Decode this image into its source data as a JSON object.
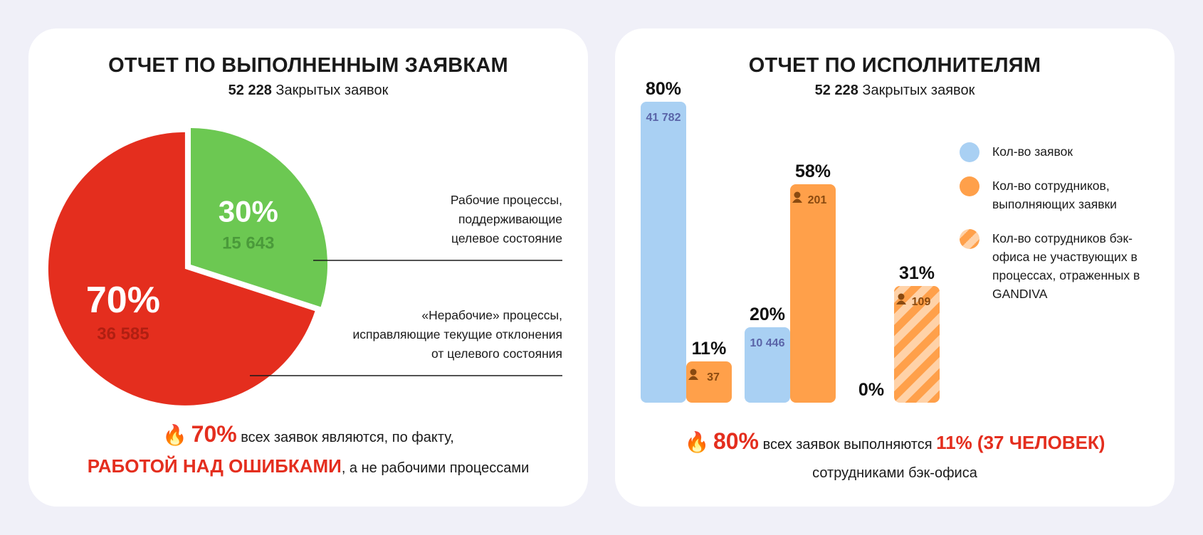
{
  "left": {
    "title": "ОТЧЕТ ПО ВЫПОЛНЕННЫМ ЗАЯВКАМ",
    "subtitle_count": "52 228",
    "subtitle_text": "Закрытых заявок",
    "annotation_working": [
      "Рабочие процессы,",
      "поддерживающие",
      "целевое состояние"
    ],
    "annotation_nonworking": [
      "«Нерабочие» процессы,",
      "исправляющие текущие отклонения",
      "от целевого состояния"
    ],
    "footer": {
      "fire_icon": "🔥",
      "pct": "70%",
      "line1_rest": "всех заявок являются, по факту,",
      "highlight": "РАБОТОЙ НАД ОШИБКАМИ",
      "line2_rest": ", а не рабочими процессами"
    }
  },
  "right": {
    "title": "ОТЧЕТ ПО ИСПОЛНИТЕЛЯМ",
    "subtitle_count": "52 228",
    "subtitle_text": "Закрытых заявок",
    "legend": [
      {
        "label": "Кол-во заявок",
        "color": "#a9d0f3"
      },
      {
        "label": "Кол-во сотрудников, выполняющих заявки",
        "color": "#ffa04a"
      },
      {
        "label": "Кол-во сотрудников бэк-офиса не участвующих в процессах, отраженных в GANDIVA",
        "color": "#ffa04a"
      }
    ],
    "footer": {
      "fire_icon": "🔥",
      "pct": "80%",
      "line1_rest": "всех заявок выполняются",
      "highlight": "11% (37 ЧЕЛОВЕК)",
      "line2": "сотрудниками бэк-офиса"
    }
  },
  "chart_data": [
    {
      "type": "pie",
      "slices": [
        {
          "label_pct": "30%",
          "label_value": "15 643",
          "percent": 30,
          "value": 15643,
          "color": "#6cc852",
          "value_color": "#4a9a3a"
        },
        {
          "label_pct": "70%",
          "label_value": "36 585",
          "percent": 70,
          "value": 36585,
          "color": "#e42e1e",
          "value_color": "#b01f12"
        }
      ]
    },
    {
      "type": "bar",
      "groups": [
        {
          "bars": [
            {
              "series": "Кол-во заявок",
              "pct_label": "80%",
              "value_label": "41 782",
              "percent": 80,
              "style": "solid",
              "color": "#a9d0f3",
              "value_color": "#5a64a8"
            },
            {
              "series": "Кол-во сотрудников, выполняющих заявки",
              "pct_label": "11%",
              "value_label": "37",
              "percent": 11,
              "style": "solid",
              "color": "#ffa04a",
              "value_color": "#8a4a10",
              "person_icon": true
            }
          ]
        },
        {
          "bars": [
            {
              "series": "Кол-во заявок",
              "pct_label": "20%",
              "value_label": "10 446",
              "percent": 20,
              "style": "solid",
              "color": "#a9d0f3",
              "value_color": "#5a64a8"
            },
            {
              "series": "Кол-во сотрудников, выполняющих заявки",
              "pct_label": "58%",
              "value_label": "201",
              "percent": 58,
              "style": "solid",
              "color": "#ffa04a",
              "value_color": "#8a4a10",
              "person_icon": true
            }
          ]
        },
        {
          "bars": [
            {
              "series": "Кол-во заявок",
              "pct_label": "0%",
              "value_label": "",
              "percent": 0,
              "style": "solid",
              "color": "#a9d0f3",
              "value_color": "#5a64a8"
            },
            {
              "series": "Кол-во сотрудников бэк-офиса не участвующих в процессах, отраженных в GANDIVA",
              "pct_label": "31%",
              "value_label": "109",
              "percent": 31,
              "style": "striped",
              "color": "#ffa04a",
              "value_color": "#8a4a10",
              "person_icon": true
            }
          ]
        }
      ]
    }
  ]
}
